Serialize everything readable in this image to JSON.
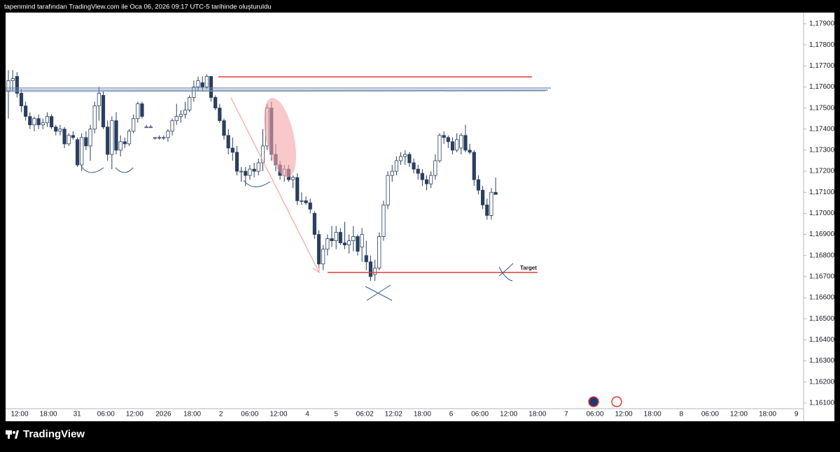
{
  "chart_data": {
    "type": "candlestick",
    "header": "tapenmind tarafından TradingView.com ile Oca 06, 2026 09:17 UTC-5 tarihinde oluşturuldu",
    "brand": "TradingView",
    "annotation": "Target",
    "categories": [
      "12:00",
      "18:00",
      "31",
      "06:00",
      "12:00",
      "2026",
      "18:00",
      "2",
      "06:00",
      "12:00",
      "4",
      "5",
      "06:02",
      "12:02",
      "18:00",
      "6",
      "06:00",
      "12:00",
      "18:00",
      "7",
      "06:00",
      "12:00",
      "18:00",
      "8",
      "06:00",
      "12:00",
      "18:00",
      "9"
    ],
    "ylim": [
      1.16073,
      1.17953
    ],
    "yticks": [
      {
        "value": 1.179,
        "label": "1,17900"
      },
      {
        "value": 1.178,
        "label": "1,17800"
      },
      {
        "value": 1.177,
        "label": "1,17700"
      },
      {
        "value": 1.176,
        "label": "1,17600"
      },
      {
        "value": 1.175,
        "label": "1,17500"
      },
      {
        "value": 1.174,
        "label": "1,17400"
      },
      {
        "value": 1.173,
        "label": "1,17300"
      },
      {
        "value": 1.172,
        "label": "1,17200"
      },
      {
        "value": 1.171,
        "label": "1,17100"
      },
      {
        "value": 1.17,
        "label": "1,17000"
      },
      {
        "value": 1.169,
        "label": "1,16900"
      },
      {
        "value": 1.168,
        "label": "1,16800"
      },
      {
        "value": 1.167,
        "label": "1,16700"
      },
      {
        "value": 1.166,
        "label": "1,16600"
      },
      {
        "value": 1.165,
        "label": "1,16500"
      },
      {
        "value": 1.164,
        "label": "1,16400"
      },
      {
        "value": 1.163,
        "label": "1,16300"
      },
      {
        "value": 1.162,
        "label": "1,16200"
      },
      {
        "value": 1.161,
        "label": "1,16100"
      }
    ],
    "up_color": "#ffffff",
    "down_color": "#2a3f5f",
    "wick_color": "#2a3f5f",
    "candles": [
      [
        1.1758,
        1.1768,
        1.1745,
        1.1763
      ],
      [
        1.1763,
        1.1768,
        1.1758,
        1.1764
      ],
      [
        1.1765,
        1.1767,
        1.1755,
        1.1757
      ],
      [
        1.1757,
        1.1759,
        1.1748,
        1.1751
      ],
      [
        1.1751,
        1.1753,
        1.1744,
        1.1746
      ],
      [
        1.1746,
        1.1748,
        1.174,
        1.1742
      ],
      [
        1.1742,
        1.1746,
        1.1739,
        1.1745
      ],
      [
        1.1745,
        1.1747,
        1.174,
        1.1742
      ],
      [
        1.1742,
        1.1745,
        1.174,
        1.1743
      ],
      [
        1.1743,
        1.1748,
        1.1741,
        1.1746
      ],
      [
        1.1746,
        1.1747,
        1.174,
        1.1741
      ],
      [
        1.1741,
        1.1742,
        1.1737,
        1.1739
      ],
      [
        1.1739,
        1.1742,
        1.1737,
        1.174
      ],
      [
        1.174,
        1.1741,
        1.1731,
        1.1733
      ],
      [
        1.1733,
        1.1738,
        1.1732,
        1.1737
      ],
      [
        1.1737,
        1.1739,
        1.1735,
        1.1736
      ],
      [
        1.1735,
        1.1736,
        1.1722,
        1.1723
      ],
      [
        1.1723,
        1.1738,
        1.172,
        1.1736
      ],
      [
        1.1736,
        1.1739,
        1.173,
        1.1732
      ],
      [
        1.1732,
        1.1742,
        1.1725,
        1.174
      ],
      [
        1.174,
        1.1753,
        1.1738,
        1.1751
      ],
      [
        1.1751,
        1.176,
        1.1744,
        1.1757
      ],
      [
        1.1756,
        1.1758,
        1.174,
        1.1741
      ],
      [
        1.1741,
        1.1744,
        1.1725,
        1.1728
      ],
      [
        1.1728,
        1.1746,
        1.1721,
        1.1744
      ],
      [
        1.1744,
        1.1748,
        1.1728,
        1.173
      ],
      [
        1.173,
        1.1737,
        1.1727,
        1.1734
      ],
      [
        1.1734,
        1.1736,
        1.1731,
        1.1733
      ],
      [
        1.1733,
        1.174,
        1.1732,
        1.1739
      ],
      [
        1.1739,
        1.1747,
        1.1738,
        1.1745
      ],
      [
        1.1745,
        1.1753,
        1.1743,
        1.1752
      ],
      [
        1.1752,
        1.1753,
        1.1745,
        1.1746
      ],
      [
        1.1741,
        1.1742,
        1.1741,
        1.1741
      ],
      [
        1.1741,
        1.1742,
        1.1741,
        1.1741
      ],
      [
        1.1736,
        1.1736,
        1.1735,
        1.1736
      ],
      [
        1.1736,
        1.1737,
        1.1735,
        1.1736
      ],
      [
        1.1736,
        1.1737,
        1.1735,
        1.1736
      ],
      [
        1.1736,
        1.174,
        1.1734,
        1.1739
      ],
      [
        1.1739,
        1.1745,
        1.1737,
        1.1744
      ],
      [
        1.1744,
        1.1752,
        1.1742,
        1.1746
      ],
      [
        1.1746,
        1.1749,
        1.1743,
        1.1747
      ],
      [
        1.1747,
        1.1753,
        1.1745,
        1.1749
      ],
      [
        1.1749,
        1.1756,
        1.1748,
        1.1755
      ],
      [
        1.1755,
        1.1763,
        1.1753,
        1.176
      ],
      [
        1.176,
        1.1765,
        1.1758,
        1.1763
      ],
      [
        1.1762,
        1.1765,
        1.1758,
        1.176
      ],
      [
        1.176,
        1.1766,
        1.1759,
        1.1765
      ],
      [
        1.1765,
        1.1765,
        1.1753,
        1.1755
      ],
      [
        1.1755,
        1.1756,
        1.1749,
        1.175
      ],
      [
        1.175,
        1.1752,
        1.1743,
        1.1744
      ],
      [
        1.1744,
        1.1745,
        1.1735,
        1.1737
      ],
      [
        1.1737,
        1.174,
        1.1728,
        1.1731
      ],
      [
        1.1731,
        1.1736,
        1.1725,
        1.1729
      ],
      [
        1.1729,
        1.1732,
        1.1718,
        1.172
      ],
      [
        1.172,
        1.1722,
        1.1715,
        1.172
      ],
      [
        1.172,
        1.1722,
        1.1713,
        1.1718
      ],
      [
        1.1718,
        1.1723,
        1.1716,
        1.1721
      ],
      [
        1.1721,
        1.1724,
        1.1717,
        1.172
      ],
      [
        1.172,
        1.1726,
        1.1718,
        1.1724
      ],
      [
        1.1724,
        1.174,
        1.172,
        1.1732
      ],
      [
        1.1732,
        1.1752,
        1.173,
        1.175
      ],
      [
        1.175,
        1.1753,
        1.1725,
        1.1728
      ],
      [
        1.1728,
        1.1733,
        1.172,
        1.1723
      ],
      [
        1.1723,
        1.1725,
        1.1716,
        1.1718
      ],
      [
        1.1718,
        1.1723,
        1.1715,
        1.1721
      ],
      [
        1.1721,
        1.1723,
        1.1715,
        1.1716
      ],
      [
        1.1716,
        1.1718,
        1.1712,
        1.1717
      ],
      [
        1.1717,
        1.1719,
        1.1704,
        1.1706
      ],
      [
        1.1706,
        1.171,
        1.1704,
        1.1706
      ],
      [
        1.1706,
        1.1708,
        1.1704,
        1.1705
      ],
      [
        1.1705,
        1.1707,
        1.17,
        1.1702
      ],
      [
        1.17,
        1.1701,
        1.1688,
        1.169
      ],
      [
        1.169,
        1.1692,
        1.1674,
        1.1676
      ],
      [
        1.1676,
        1.1685,
        1.1673,
        1.1683
      ],
      [
        1.1683,
        1.169,
        1.168,
        1.1688
      ],
      [
        1.1688,
        1.1694,
        1.1684,
        1.1687
      ],
      [
        1.1687,
        1.1694,
        1.1683,
        1.1691
      ],
      [
        1.1691,
        1.1693,
        1.1685,
        1.1686
      ],
      [
        1.1686,
        1.1696,
        1.1683,
        1.1685
      ],
      [
        1.1685,
        1.169,
        1.1681,
        1.1687
      ],
      [
        1.1687,
        1.1694,
        1.1682,
        1.1689
      ],
      [
        1.1689,
        1.169,
        1.168,
        1.1682
      ],
      [
        1.1684,
        1.1693,
        1.1677,
        1.169
      ],
      [
        1.168,
        1.1687,
        1.1673,
        1.1677
      ],
      [
        1.1677,
        1.168,
        1.1668,
        1.167
      ],
      [
        1.1671,
        1.1678,
        1.1668,
        1.1674
      ],
      [
        1.1674,
        1.1691,
        1.1673,
        1.1689
      ],
      [
        1.1689,
        1.1706,
        1.1687,
        1.1704
      ],
      [
        1.1704,
        1.172,
        1.1702,
        1.1718
      ],
      [
        1.1718,
        1.1723,
        1.1715,
        1.172
      ],
      [
        1.172,
        1.1727,
        1.1718,
        1.1725
      ],
      [
        1.1725,
        1.1729,
        1.1723,
        1.1727
      ],
      [
        1.1727,
        1.173,
        1.1723,
        1.1728
      ],
      [
        1.1728,
        1.1729,
        1.1722,
        1.1724
      ],
      [
        1.1724,
        1.1726,
        1.1719,
        1.1721
      ],
      [
        1.1721,
        1.1723,
        1.1716,
        1.1719
      ],
      [
        1.1719,
        1.1721,
        1.1713,
        1.1716
      ],
      [
        1.1716,
        1.1718,
        1.1711,
        1.1714
      ],
      [
        1.1714,
        1.172,
        1.1712,
        1.1718
      ],
      [
        1.1718,
        1.1728,
        1.1716,
        1.1725
      ],
      [
        1.1725,
        1.1738,
        1.1724,
        1.1737
      ],
      [
        1.1737,
        1.1739,
        1.1733,
        1.1736
      ],
      [
        1.1736,
        1.1737,
        1.1731,
        1.1734
      ],
      [
        1.1734,
        1.1736,
        1.1728,
        1.173
      ],
      [
        1.173,
        1.1738,
        1.1729,
        1.1735
      ],
      [
        1.1731,
        1.1738,
        1.1728,
        1.1737
      ],
      [
        1.1737,
        1.1742,
        1.1729,
        1.173
      ],
      [
        1.173,
        1.1733,
        1.1728,
        1.1729
      ],
      [
        1.1729,
        1.173,
        1.1713,
        1.1716
      ],
      [
        1.1716,
        1.1718,
        1.1709,
        1.1711
      ],
      [
        1.1711,
        1.1713,
        1.1702,
        1.1704
      ],
      [
        1.1704,
        1.1707,
        1.1697,
        1.1699
      ],
      [
        1.1699,
        1.1712,
        1.1697,
        1.171
      ],
      [
        1.171,
        1.1717,
        1.1709,
        1.1709
      ]
    ]
  }
}
